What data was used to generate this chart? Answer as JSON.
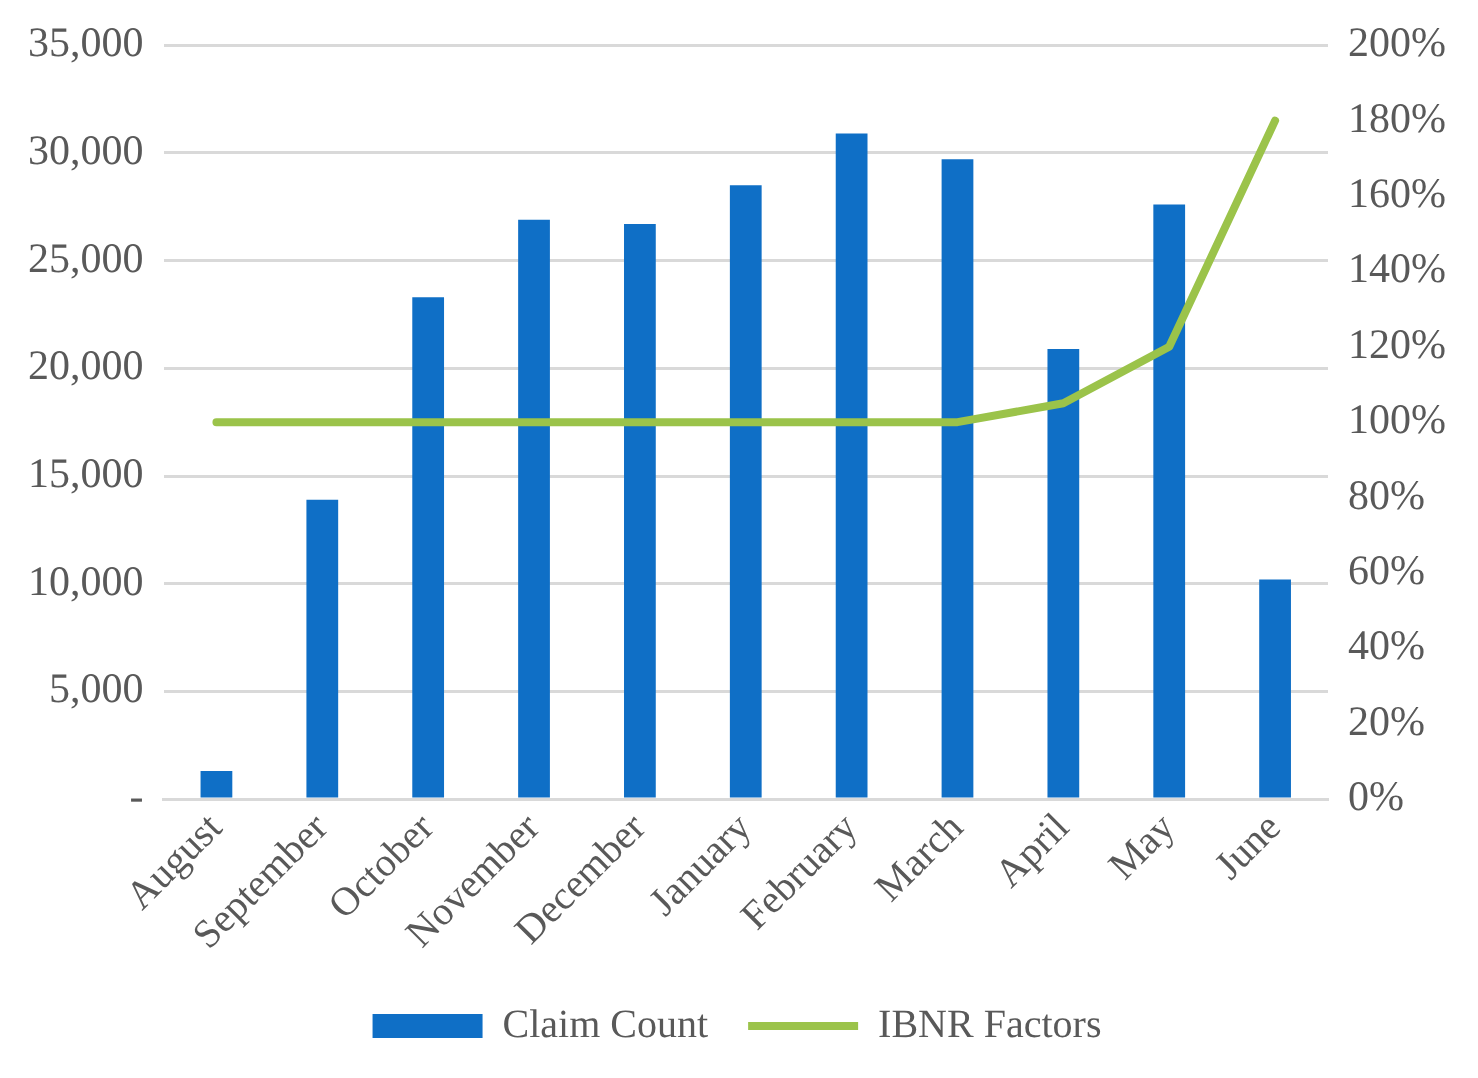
{
  "chart_data": {
    "type": "bar",
    "categories": [
      "August",
      "September",
      "October",
      "November",
      "December",
      "January",
      "February",
      "March",
      "April",
      "May",
      "June"
    ],
    "series": [
      {
        "name": "Claim Count",
        "color": "#0f6fc6",
        "values": [
          1300,
          13900,
          23300,
          26900,
          26700,
          28500,
          30900,
          29700,
          20900,
          27600,
          10200
        ]
      },
      {
        "name": "IBNR Factors",
        "type": "line",
        "axis": "y2",
        "color": "#9bc34a",
        "values": [
          100,
          100,
          100,
          100,
          100,
          100,
          100,
          100,
          105,
          120,
          180
        ]
      }
    ],
    "ylim": [
      0,
      35000
    ],
    "yticks": [
      {
        "value": 0,
        "label": "-"
      },
      {
        "value": 5000,
        "label": "5,000"
      },
      {
        "value": 10000,
        "label": "10,000"
      },
      {
        "value": 15000,
        "label": "15,000"
      },
      {
        "value": 20000,
        "label": "20,000"
      },
      {
        "value": 25000,
        "label": "25,000"
      },
      {
        "value": 30000,
        "label": "30,000"
      },
      {
        "value": 35000,
        "label": "35,000"
      }
    ],
    "y2lim": [
      0,
      200
    ],
    "y2ticks": [
      {
        "value": 0,
        "label": "0%"
      },
      {
        "value": 20,
        "label": "20%"
      },
      {
        "value": 40,
        "label": "40%"
      },
      {
        "value": 60,
        "label": "60%"
      },
      {
        "value": 80,
        "label": "80%"
      },
      {
        "value": 100,
        "label": "100%"
      },
      {
        "value": 120,
        "label": "120%"
      },
      {
        "value": 140,
        "label": "140%"
      },
      {
        "value": 160,
        "label": "160%"
      },
      {
        "value": 180,
        "label": "180%"
      },
      {
        "value": 200,
        "label": "200%"
      }
    ],
    "grid": "y",
    "legend": "bottom",
    "marker": "none",
    "line_style": "solid"
  }
}
